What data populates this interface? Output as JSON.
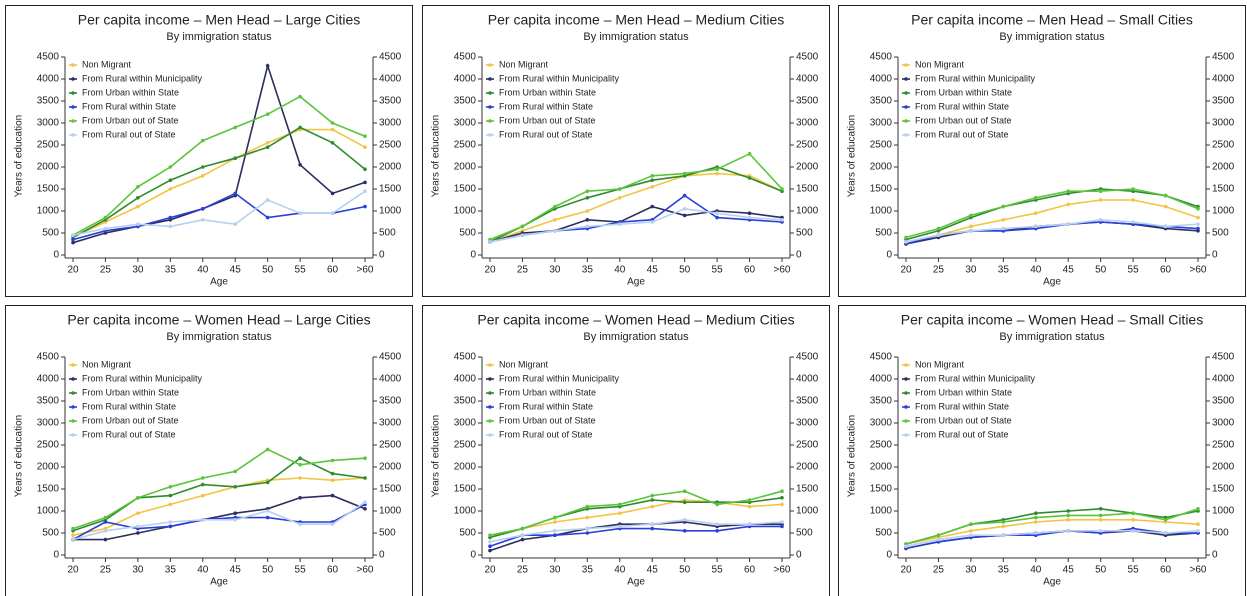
{
  "chart_data": [
    {
      "type": "line",
      "title": "Per capita income – Men Head – Large Cities",
      "subtitle": "By immigration status",
      "xlabel": "Age",
      "ylabel": "Years of education",
      "categories": [
        "20",
        "25",
        "30",
        "35",
        "40",
        "45",
        "50",
        "55",
        "60",
        ">60"
      ],
      "series": [
        {
          "name": "Non Migrant",
          "color": "#f2c443",
          "values": [
            400,
            750,
            1100,
            1500,
            1800,
            2200,
            2550,
            2850,
            2850,
            2450
          ]
        },
        {
          "name": "From Rural within Municipality",
          "color": "#2b2f5e",
          "values": [
            280,
            500,
            650,
            800,
            1050,
            1350,
            4300,
            2050,
            1400,
            1650
          ]
        },
        {
          "name": "From Urban within State",
          "color": "#2e8b2e",
          "values": [
            400,
            800,
            1300,
            1700,
            2000,
            2200,
            2450,
            2900,
            2550,
            1950
          ]
        },
        {
          "name": "From Rural within State",
          "color": "#2a3fd6",
          "values": [
            350,
            550,
            650,
            850,
            1050,
            1400,
            850,
            950,
            950,
            1100
          ]
        },
        {
          "name": "From Urban out of State",
          "color": "#5cc43a",
          "values": [
            450,
            850,
            1550,
            2000,
            2600,
            2900,
            3200,
            3600,
            3000,
            2700
          ]
        },
        {
          "name": "From Rural out of State",
          "color": "#b8d0f0",
          "values": [
            450,
            600,
            700,
            650,
            800,
            700,
            1250,
            950,
            950,
            1450
          ]
        }
      ],
      "ylim": [
        0,
        4500
      ],
      "yticks": [
        0,
        500,
        1000,
        1500,
        2000,
        2500,
        3000,
        3500,
        4000,
        4500
      ],
      "y2lim": [
        0,
        4500
      ],
      "y2ticks": [
        0,
        500,
        1000,
        1500,
        2000,
        2500,
        3000,
        3500,
        4000,
        4500
      ],
      "legend": "top-left"
    },
    {
      "type": "line",
      "title": "Per capita income – Men Head – Medium Cities",
      "subtitle": "By immigration status",
      "xlabel": "Age",
      "ylabel": "Years of education",
      "categories": [
        "20",
        "25",
        "30",
        "35",
        "40",
        "45",
        "50",
        "55",
        "60",
        ">60"
      ],
      "series": [
        {
          "name": "Non Migrant",
          "color": "#f2c443",
          "values": [
            300,
            550,
            800,
            1000,
            1300,
            1550,
            1800,
            1850,
            1800,
            1450
          ]
        },
        {
          "name": "From Rural within Municipality",
          "color": "#2b2f5e",
          "values": [
            300,
            500,
            550,
            800,
            750,
            1100,
            900,
            1000,
            950,
            850
          ]
        },
        {
          "name": "From Urban within State",
          "color": "#2e8b2e",
          "values": [
            300,
            650,
            1050,
            1300,
            1500,
            1700,
            1800,
            2000,
            1750,
            1450
          ]
        },
        {
          "name": "From Rural within State",
          "color": "#2a3fd6",
          "values": [
            300,
            450,
            550,
            600,
            750,
            800,
            1350,
            850,
            800,
            750
          ]
        },
        {
          "name": "From Urban out of State",
          "color": "#5cc43a",
          "values": [
            350,
            650,
            1100,
            1450,
            1500,
            1800,
            1850,
            1950,
            2300,
            1500
          ]
        },
        {
          "name": "From Rural out of State",
          "color": "#b8d0f0",
          "values": [
            300,
            450,
            550,
            650,
            700,
            750,
            1050,
            950,
            850,
            800
          ]
        }
      ],
      "ylim": [
        0,
        4500
      ],
      "yticks": [
        0,
        500,
        1000,
        1500,
        2000,
        2500,
        3000,
        3500,
        4000,
        4500
      ],
      "y2lim": [
        0,
        4500
      ],
      "y2ticks": [
        0,
        500,
        1000,
        1500,
        2000,
        2500,
        3000,
        3500,
        4000,
        4500
      ],
      "legend": "top-left"
    },
    {
      "type": "line",
      "title": "Per capita income – Men Head – Small Cities",
      "subtitle": "By immigration status",
      "xlabel": "Age",
      "ylabel": "Years of education",
      "categories": [
        "20",
        "25",
        "30",
        "35",
        "40",
        "45",
        "50",
        "55",
        "60",
        ">60"
      ],
      "series": [
        {
          "name": "Non Migrant",
          "color": "#f2c443",
          "values": [
            250,
            450,
            650,
            800,
            950,
            1150,
            1250,
            1250,
            1100,
            850
          ]
        },
        {
          "name": "From Rural within Municipality",
          "color": "#2b2f5e",
          "values": [
            250,
            400,
            550,
            550,
            650,
            700,
            750,
            700,
            600,
            550
          ]
        },
        {
          "name": "From Urban within State",
          "color": "#2e8b2e",
          "values": [
            350,
            550,
            850,
            1100,
            1250,
            1400,
            1500,
            1450,
            1350,
            1100
          ]
        },
        {
          "name": "From Rural within State",
          "color": "#2a3fd6",
          "values": [
            250,
            450,
            550,
            550,
            600,
            700,
            750,
            700,
            650,
            600
          ]
        },
        {
          "name": "From Urban out of State",
          "color": "#5cc43a",
          "values": [
            400,
            600,
            900,
            1100,
            1300,
            1450,
            1450,
            1500,
            1350,
            1050
          ]
        },
        {
          "name": "From Rural out of State",
          "color": "#b8d0f0",
          "values": [
            300,
            450,
            550,
            600,
            650,
            700,
            800,
            750,
            650,
            700
          ]
        }
      ],
      "ylim": [
        0,
        4500
      ],
      "yticks": [
        0,
        500,
        1000,
        1500,
        2000,
        2500,
        3000,
        3500,
        4000,
        4500
      ],
      "y2lim": [
        0,
        4500
      ],
      "y2ticks": [
        0,
        500,
        1000,
        1500,
        2000,
        2500,
        3000,
        3500,
        4000,
        4500
      ],
      "legend": "top-left"
    },
    {
      "type": "line",
      "title": "Per capita income – Women Head – Large Cities",
      "subtitle": "By immigration status",
      "xlabel": "Age",
      "ylabel": "Years of education",
      "categories": [
        "20",
        "25",
        "30",
        "35",
        "40",
        "45",
        "50",
        "55",
        "60",
        ">60"
      ],
      "series": [
        {
          "name": "Non Migrant",
          "color": "#f2c443",
          "values": [
            450,
            600,
            950,
            1150,
            1350,
            1550,
            1700,
            1750,
            1700,
            1750
          ]
        },
        {
          "name": "From Rural within Municipality",
          "color": "#2b2f5e",
          "values": [
            350,
            350,
            500,
            650,
            800,
            950,
            1050,
            1300,
            1350,
            1050
          ]
        },
        {
          "name": "From Urban within State",
          "color": "#2e8b2e",
          "values": [
            550,
            800,
            1300,
            1350,
            1600,
            1550,
            1650,
            2200,
            1850,
            1750
          ]
        },
        {
          "name": "From Rural within State",
          "color": "#2a3fd6",
          "values": [
            350,
            750,
            600,
            650,
            800,
            850,
            850,
            750,
            750,
            1150
          ]
        },
        {
          "name": "From Urban out of State",
          "color": "#5cc43a",
          "values": [
            600,
            850,
            1300,
            1550,
            1750,
            1900,
            2400,
            2050,
            2150,
            2200
          ]
        },
        {
          "name": "From Rural out of State",
          "color": "#b8d0f0",
          "values": [
            350,
            550,
            650,
            750,
            800,
            800,
            1000,
            700,
            700,
            1200
          ]
        }
      ],
      "ylim": [
        0,
        4500
      ],
      "yticks": [
        0,
        500,
        1000,
        1500,
        2000,
        2500,
        3000,
        3500,
        4000,
        4500
      ],
      "y2lim": [
        0,
        4500
      ],
      "y2ticks": [
        0,
        500,
        1000,
        1500,
        2000,
        2500,
        3000,
        3500,
        4000,
        4500
      ],
      "legend": "top-left"
    },
    {
      "type": "line",
      "title": "Per capita income – Women Head – Medium Cities",
      "subtitle": "By immigration status",
      "xlabel": "Age",
      "ylabel": "Years of education",
      "categories": [
        "20",
        "25",
        "30",
        "35",
        "40",
        "45",
        "50",
        "55",
        "60",
        ">60"
      ],
      "series": [
        {
          "name": "Non Migrant",
          "color": "#f2c443",
          "values": [
            400,
            600,
            750,
            850,
            950,
            1100,
            1250,
            1200,
            1100,
            1150
          ]
        },
        {
          "name": "From Rural within Municipality",
          "color": "#2b2f5e",
          "values": [
            100,
            350,
            450,
            600,
            700,
            700,
            750,
            650,
            700,
            700
          ]
        },
        {
          "name": "From Urban within State",
          "color": "#2e8b2e",
          "values": [
            400,
            600,
            850,
            1050,
            1100,
            1250,
            1200,
            1200,
            1200,
            1300
          ]
        },
        {
          "name": "From Rural within State",
          "color": "#2a3fd6",
          "values": [
            200,
            450,
            450,
            500,
            600,
            600,
            550,
            550,
            650,
            650
          ]
        },
        {
          "name": "From Urban out of State",
          "color": "#5cc43a",
          "values": [
            450,
            600,
            850,
            1100,
            1150,
            1350,
            1450,
            1150,
            1250,
            1450
          ]
        },
        {
          "name": "From Rural out of State",
          "color": "#b8d0f0",
          "values": [
            300,
            450,
            550,
            600,
            650,
            700,
            800,
            700,
            700,
            750
          ]
        }
      ],
      "ylim": [
        0,
        4500
      ],
      "yticks": [
        0,
        500,
        1000,
        1500,
        2000,
        2500,
        3000,
        3500,
        4000,
        4500
      ],
      "y2lim": [
        0,
        4500
      ],
      "y2ticks": [
        0,
        500,
        1000,
        1500,
        2000,
        2500,
        3000,
        3500,
        4000,
        4500
      ],
      "legend": "top-left"
    },
    {
      "type": "line",
      "title": "Per capita income – Women Head – Small Cities",
      "subtitle": "By immigration status",
      "xlabel": "Age",
      "ylabel": "Years of education",
      "categories": [
        "20",
        "25",
        "30",
        "35",
        "40",
        "45",
        "50",
        "55",
        "60",
        ">60"
      ],
      "series": [
        {
          "name": "Non Migrant",
          "color": "#f2c443",
          "values": [
            250,
            400,
            550,
            650,
            750,
            800,
            800,
            800,
            750,
            700
          ]
        },
        {
          "name": "From Rural within Municipality",
          "color": "#2b2f5e",
          "values": [
            150,
            300,
            400,
            450,
            500,
            550,
            500,
            550,
            450,
            500
          ]
        },
        {
          "name": "From Urban within State",
          "color": "#2e8b2e",
          "values": [
            250,
            450,
            700,
            800,
            950,
            1000,
            1050,
            950,
            850,
            1000
          ]
        },
        {
          "name": "From Rural within State",
          "color": "#2a3fd6",
          "values": [
            150,
            300,
            400,
            450,
            450,
            550,
            500,
            600,
            500,
            500
          ]
        },
        {
          "name": "From Urban out of State",
          "color": "#5cc43a",
          "values": [
            250,
            450,
            700,
            750,
            850,
            900,
            900,
            950,
            800,
            1050
          ]
        },
        {
          "name": "From Rural out of State",
          "color": "#b8d0f0",
          "values": [
            200,
            350,
            450,
            450,
            500,
            550,
            550,
            550,
            500,
            550
          ]
        }
      ],
      "ylim": [
        0,
        4500
      ],
      "yticks": [
        0,
        500,
        1000,
        1500,
        2000,
        2500,
        3000,
        3500,
        4000,
        4500
      ],
      "y2lim": [
        0,
        4500
      ],
      "y2ticks": [
        0,
        500,
        1000,
        1500,
        2000,
        2500,
        3000,
        3500,
        4000,
        4500
      ],
      "legend": "top-left"
    }
  ]
}
